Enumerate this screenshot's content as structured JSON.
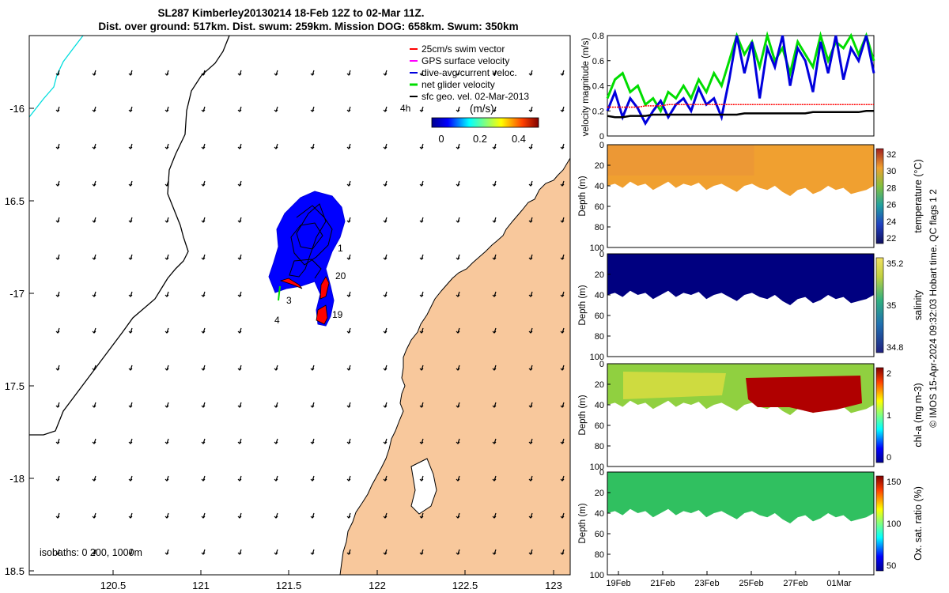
{
  "title_line1": "SL287 Kimberley20130214 18-Feb 12Z to 02-Mar 11Z.",
  "title_line2": "Dist. over ground: 517km. Dist. swum: 259km. Mission DOG: 658km. Swum: 350km",
  "credit": "© IMOS 15-Apr-2024 09:32:03 Hobart time. QC flags 1  2",
  "colors": {
    "land": "#f8c89c",
    "swim_vector": "#ff0000",
    "gps_velocity": "#ff00ff",
    "dive_avg": "#0000dd",
    "net_glider": "#00dd00",
    "sfc_geo": "#000000",
    "coastline_cyan": "#00dddd"
  },
  "map": {
    "lon_ticks": [
      "120.5",
      "121",
      "121.5",
      "122",
      "122.5",
      "123"
    ],
    "lat_ticks": [
      "-16",
      "16.5",
      "-17",
      "17.5",
      "-18",
      "18.5"
    ],
    "legend": [
      {
        "label": "25cm/s swim vector",
        "color": "#ff0000"
      },
      {
        "label": "GPS surface velocity",
        "color": "#ff00ff"
      },
      {
        "label": "dive-avg current veloc.",
        "color": "#0000dd"
      },
      {
        "label": "net glider velocity",
        "color": "#00dd00"
      },
      {
        "label": "sfc geo. vel. 02-Mar-2013",
        "color": "#000000"
      }
    ],
    "colorbar_title": "(m/s)",
    "colorbar_ticks": [
      "0",
      "0.2",
      "0.4"
    ],
    "track_labels": [
      "4h",
      "1",
      "20",
      "3",
      "4",
      "19"
    ],
    "isobaths_label": "isobaths: 0   200, 1000m"
  },
  "chart_data": [
    {
      "type": "line",
      "title": "",
      "ylabel": "velocity magnitude (m/s)",
      "ylim": [
        0,
        0.8
      ],
      "yticks": [
        "0",
        "0.2",
        "0.4",
        "0.6",
        "0.8"
      ],
      "series": [
        {
          "name": "dive-avg current veloc.",
          "color": "#0000dd",
          "values": [
            0.2,
            0.35,
            0.15,
            0.3,
            0.22,
            0.1,
            0.2,
            0.28,
            0.15,
            0.25,
            0.3,
            0.2,
            0.38,
            0.25,
            0.3,
            0.15,
            0.45,
            0.8,
            0.5,
            0.75,
            0.3,
            0.7,
            0.55,
            0.8,
            0.4,
            0.7,
            0.6,
            0.35,
            0.75,
            0.5,
            0.8,
            0.45,
            0.7,
            0.6,
            0.8,
            0.5
          ]
        },
        {
          "name": "net glider velocity",
          "color": "#00dd00",
          "values": [
            0.3,
            0.45,
            0.5,
            0.35,
            0.4,
            0.25,
            0.3,
            0.2,
            0.35,
            0.3,
            0.4,
            0.3,
            0.45,
            0.35,
            0.5,
            0.4,
            0.6,
            0.8,
            0.65,
            0.75,
            0.55,
            0.8,
            0.6,
            0.7,
            0.5,
            0.75,
            0.65,
            0.55,
            0.8,
            0.6,
            0.75,
            0.7,
            0.8,
            0.65,
            0.8,
            0.6
          ]
        },
        {
          "name": "25cm/s swim vector",
          "color": "#ff0000",
          "values": [
            0.23,
            0.23,
            0.23,
            0.23,
            0.23,
            0.24,
            0.24,
            0.24,
            0.25,
            0.25,
            0.25,
            0.25,
            0.25,
            0.25,
            0.25,
            0.25,
            0.25,
            0.25,
            0.25,
            0.25,
            0.25,
            0.25,
            0.25,
            0.25,
            0.25,
            0.25,
            0.25,
            0.25,
            0.25,
            0.25,
            0.25,
            0.25,
            0.25,
            0.25,
            0.25,
            0.25
          ]
        },
        {
          "name": "sfc geo. vel.",
          "color": "#000000",
          "values": [
            0.16,
            0.15,
            0.15,
            0.16,
            0.16,
            0.16,
            0.17,
            0.17,
            0.17,
            0.17,
            0.17,
            0.17,
            0.17,
            0.17,
            0.17,
            0.17,
            0.17,
            0.17,
            0.18,
            0.18,
            0.18,
            0.18,
            0.18,
            0.18,
            0.18,
            0.18,
            0.18,
            0.19,
            0.19,
            0.19,
            0.19,
            0.19,
            0.19,
            0.19,
            0.2,
            0.2
          ]
        }
      ]
    },
    {
      "type": "heatmap",
      "ylabel": "Depth (m)",
      "yticks": [
        "0",
        "20",
        "40",
        "60",
        "80",
        "100"
      ],
      "colorbar_label": "temperature (°C)",
      "colorbar_ticks": [
        "32",
        "30",
        "28",
        "26",
        "24",
        "22"
      ],
      "fill_color": "#f0a030"
    },
    {
      "type": "heatmap",
      "ylabel": "Depth (m)",
      "yticks": [
        "0",
        "20",
        "40",
        "60",
        "80",
        "100"
      ],
      "colorbar_label": "salinity",
      "colorbar_ticks": [
        "35.2",
        "35",
        "34.8"
      ],
      "fill_color": "#000080"
    },
    {
      "type": "heatmap",
      "ylabel": "Depth (m)",
      "yticks": [
        "0",
        "20",
        "40",
        "60",
        "80",
        "100"
      ],
      "colorbar_label": "chl-a (mg m-3)",
      "colorbar_ticks": [
        "2",
        "1",
        "0"
      ],
      "fill_color": "#90d040"
    },
    {
      "type": "heatmap",
      "ylabel": "Depth (m)",
      "yticks": [
        "0",
        "20",
        "40",
        "60",
        "80",
        "100"
      ],
      "colorbar_label": "Ox. sat. ratio (%)",
      "colorbar_ticks": [
        "150",
        "100",
        "50"
      ],
      "fill_color": "#30c060"
    }
  ],
  "time_ticks": [
    "19Feb",
    "21Feb",
    "23Feb",
    "25Feb",
    "27Feb",
    "01Mar"
  ]
}
